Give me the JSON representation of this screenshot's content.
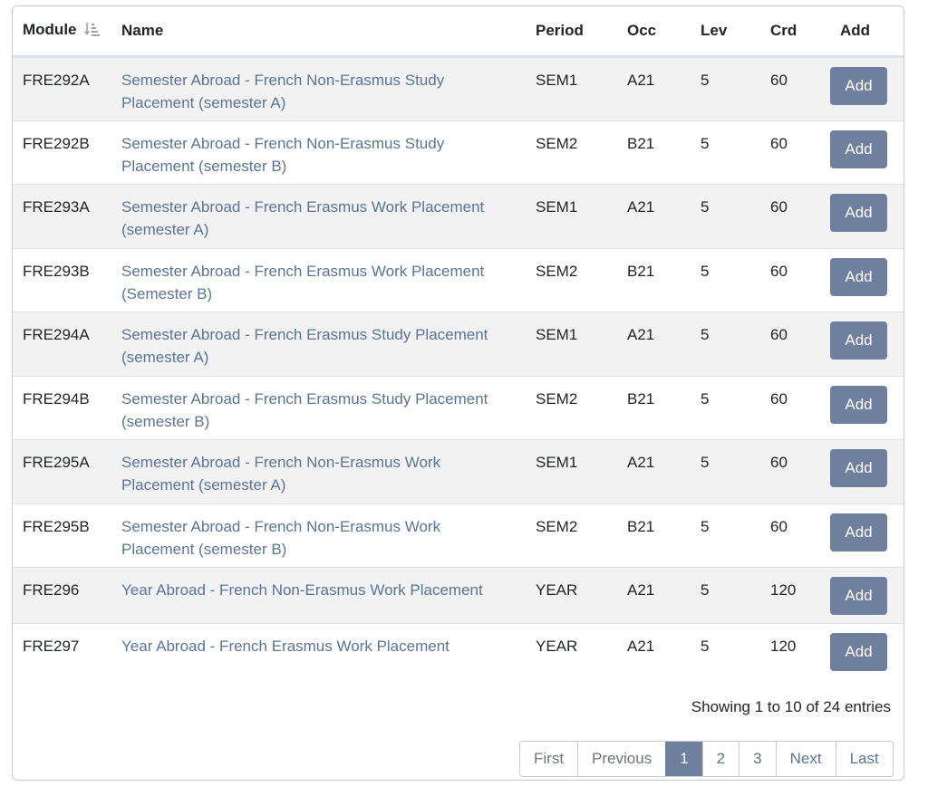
{
  "table": {
    "headers": {
      "module": "Module",
      "name": "Name",
      "period": "Period",
      "occ": "Occ",
      "lev": "Lev",
      "crd": "Crd",
      "add": "Add"
    },
    "sort_icon": "sort-amount-down-icon",
    "rows": [
      {
        "module": "FRE292A",
        "name_line1": "Semester Abroad - French Non-Erasmus Study",
        "name_line2": "Placement (semester A)",
        "period": "SEM1",
        "occ": "A21",
        "lev": "5",
        "crd": "60",
        "add_label": "Add"
      },
      {
        "module": "FRE292B",
        "name_line1": "Semester Abroad - French Non-Erasmus Study",
        "name_line2": "Placement (semester B)",
        "period": "SEM2",
        "occ": "B21",
        "lev": "5",
        "crd": "60",
        "add_label": "Add"
      },
      {
        "module": "FRE293A",
        "name_line1": "Semester Abroad - French Erasmus Work Placement",
        "name_line2": "(semester A)",
        "period": "SEM1",
        "occ": "A21",
        "lev": "5",
        "crd": "60",
        "add_label": "Add"
      },
      {
        "module": "FRE293B",
        "name_line1": "Semester Abroad - French Erasmus Work Placement",
        "name_line2": "(Semester B)",
        "period": "SEM2",
        "occ": "B21",
        "lev": "5",
        "crd": "60",
        "add_label": "Add"
      },
      {
        "module": "FRE294A",
        "name_line1": "Semester Abroad - French Erasmus Study Placement",
        "name_line2": "(semester A)",
        "period": "SEM1",
        "occ": "A21",
        "lev": "5",
        "crd": "60",
        "add_label": "Add"
      },
      {
        "module": "FRE294B",
        "name_line1": "Semester Abroad - French Erasmus Study Placement",
        "name_line2": "(semester B)",
        "period": "SEM2",
        "occ": "B21",
        "lev": "5",
        "crd": "60",
        "add_label": "Add"
      },
      {
        "module": "FRE295A",
        "name_line1": "Semester Abroad - French Non-Erasmus Work",
        "name_line2": "Placement (semester A)",
        "period": "SEM1",
        "occ": "A21",
        "lev": "5",
        "crd": "60",
        "add_label": "Add"
      },
      {
        "module": "FRE295B",
        "name_line1": "Semester Abroad - French Non-Erasmus Work",
        "name_line2": "Placement (semester B)",
        "period": "SEM2",
        "occ": "B21",
        "lev": "5",
        "crd": "60",
        "add_label": "Add"
      },
      {
        "module": "FRE296",
        "name_line1": "Year Abroad - French Non-Erasmus Work Placement",
        "name_line2": "",
        "period": "YEAR",
        "occ": "A21",
        "lev": "5",
        "crd": "120",
        "add_label": "Add"
      },
      {
        "module": "FRE297",
        "name_line1": "Year Abroad - French Erasmus Work Placement",
        "name_line2": "",
        "period": "YEAR",
        "occ": "A21",
        "lev": "5",
        "crd": "120",
        "add_label": "Add"
      }
    ]
  },
  "info": "Showing 1 to 10 of 24 entries",
  "pagination": {
    "first": "First",
    "previous": "Previous",
    "pages": [
      "1",
      "2",
      "3"
    ],
    "active_page": "1",
    "next": "Next",
    "last": "Last"
  },
  "colors": {
    "link": "#5b7499",
    "button": "#6e809d",
    "stripe": "#f2f2f2"
  }
}
